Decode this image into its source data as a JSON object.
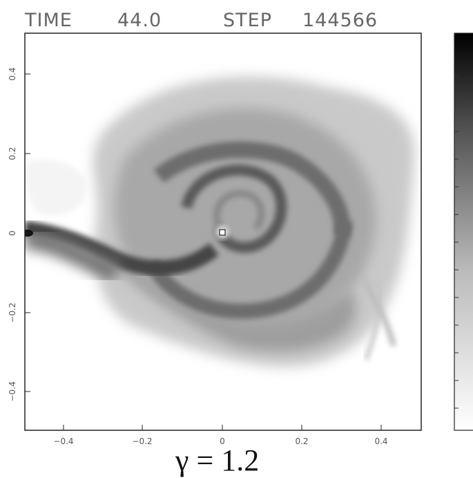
{
  "header": {
    "time_label": "TIME",
    "time_value": "44.0",
    "step_label": "STEP",
    "step_value": "144566"
  },
  "axes": {
    "x_ticks": [
      "−0.4",
      "−0.2",
      "0",
      "0.2",
      "0.4"
    ],
    "x_tick_values": [
      -0.4,
      -0.2,
      0,
      0.2,
      0.4
    ],
    "y_ticks": [
      "0.4",
      "0.2",
      "0",
      "−0.2",
      "−0.4"
    ],
    "y_tick_values": [
      0.4,
      0.2,
      0,
      -0.2,
      -0.4
    ],
    "xlim": [
      -0.5,
      0.5
    ],
    "ylim": [
      -0.5,
      0.5
    ]
  },
  "annotation": "γ = 1.2",
  "colors": {
    "frame": "#222222",
    "density_dark": "#111111",
    "background": "#ffffff"
  }
}
